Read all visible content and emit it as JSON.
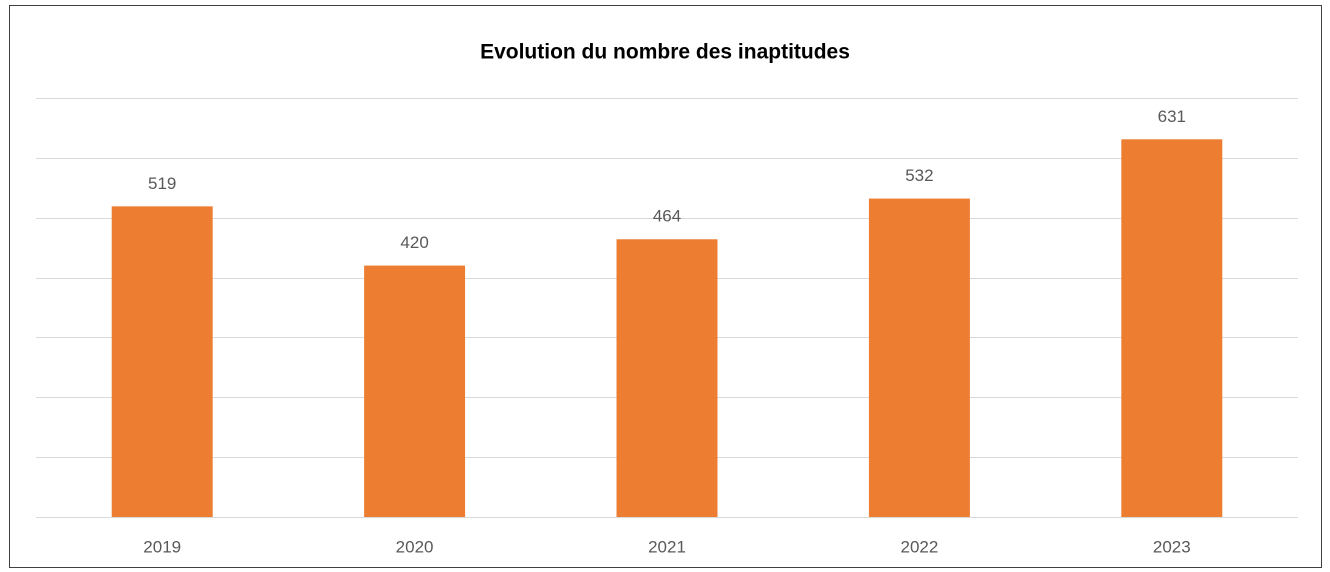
{
  "chart_data": {
    "type": "bar",
    "title": "Evolution du nombre des inaptitudes",
    "categories": [
      "2019",
      "2020",
      "2021",
      "2022",
      "2023"
    ],
    "values": [
      519,
      420,
      464,
      532,
      631
    ],
    "color": "#ed7d31",
    "ylim": [
      0,
      700
    ],
    "yticks": [
      0,
      100,
      200,
      300,
      400,
      500,
      600,
      700
    ],
    "grid": true
  }
}
